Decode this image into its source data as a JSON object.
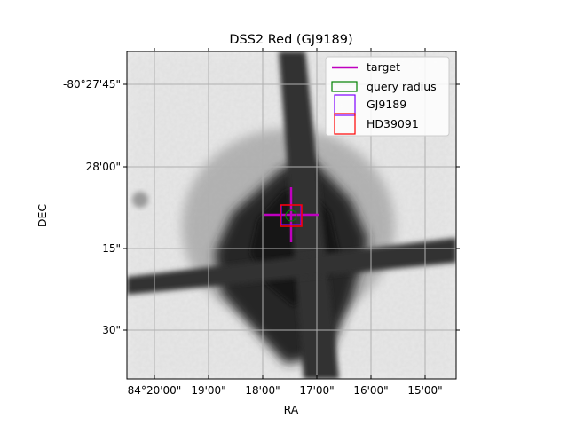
{
  "chart_data": {
    "type": "image",
    "title": "DSS2 Red (GJ9189)",
    "xlabel": "RA",
    "ylabel": "DEC",
    "x_ticks": [
      "84°20'00\"",
      "19'00\"",
      "18'00\"",
      "17'00\"",
      "16'00\"",
      "15'00\""
    ],
    "y_ticks": [
      "-80°27'45\"",
      "28'00\"",
      "15\"",
      "30\""
    ],
    "grid": true,
    "legend_position": "upper right",
    "legend": [
      {
        "label": "target",
        "marker": "line",
        "color": "#bf00bf"
      },
      {
        "label": "query radius",
        "marker": "rect",
        "color": "#008000"
      },
      {
        "label": "GJ9189",
        "marker": "rect",
        "color": "#7f00ff"
      },
      {
        "label": "HD39091",
        "marker": "rect",
        "color": "#ff0000"
      }
    ],
    "markers": {
      "target": {
        "type": "cross",
        "color": "#bf00bf"
      },
      "query_radius": {
        "type": "circle",
        "color": "#008000"
      },
      "GJ9189": {
        "type": "square",
        "color": "#7f00ff"
      },
      "HD39091": {
        "type": "square",
        "color": "#ff0000"
      }
    }
  }
}
